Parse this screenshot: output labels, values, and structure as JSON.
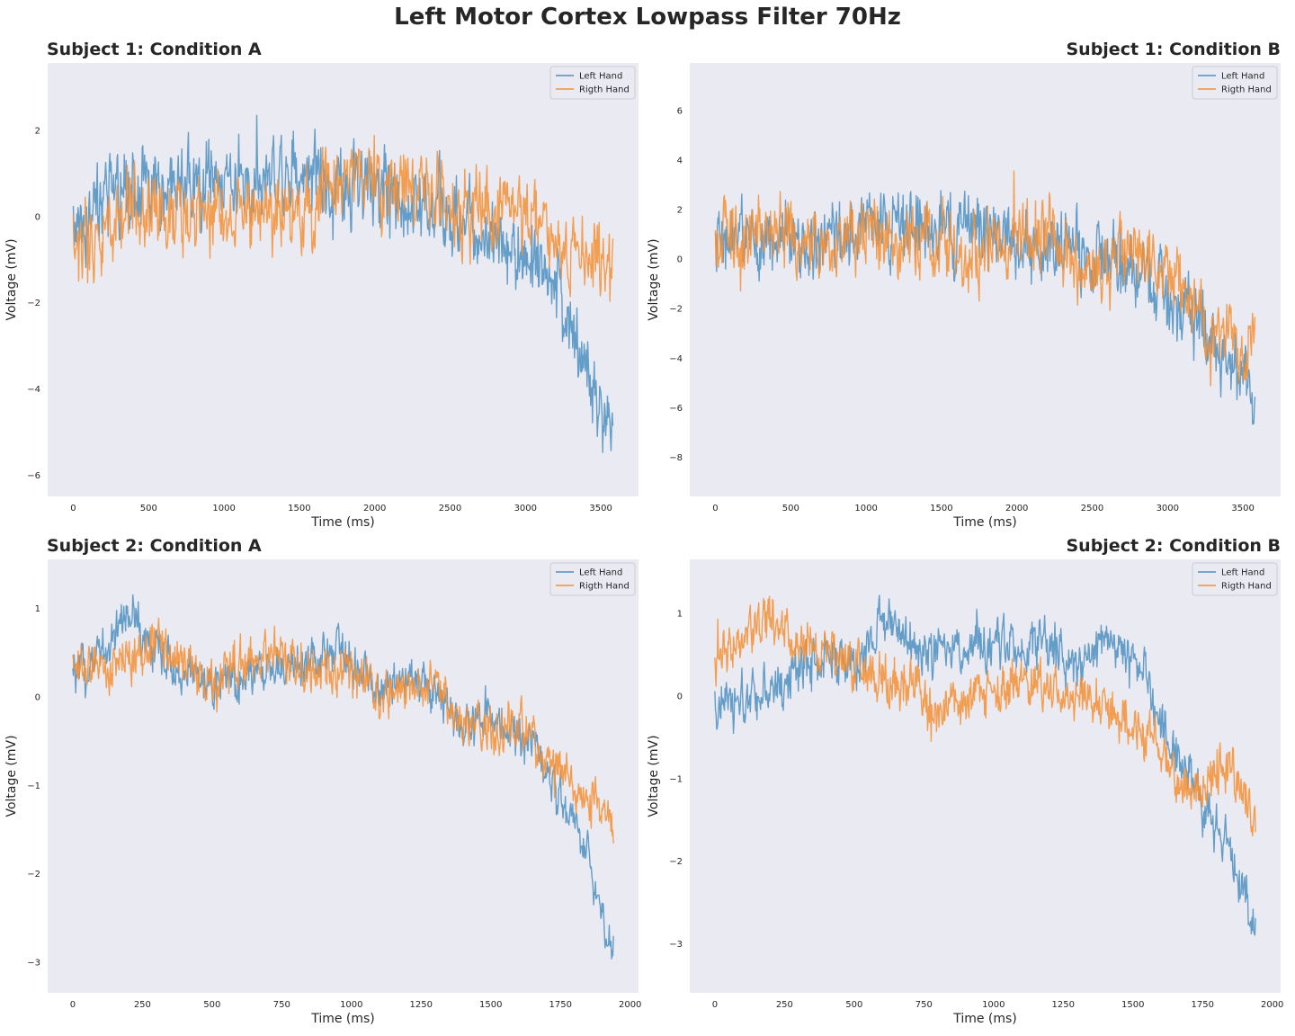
{
  "figure": {
    "suptitle": "Left Motor Cortex Lowpass Filter 70Hz"
  },
  "colors": {
    "left": "#4c8fc1",
    "right": "#f58f35",
    "bg": "#eaeaf2"
  },
  "chart_data": [
    {
      "type": "line",
      "title": "Subject 1: Condition A",
      "title_align": "left",
      "xlabel": "Time (ms)",
      "ylabel": "Voltage (mV)",
      "xlim": [
        -170,
        3750
      ],
      "ylim": [
        -6.5,
        3.55
      ],
      "xticks": [
        0,
        500,
        1000,
        1500,
        2000,
        2500,
        3000,
        3500
      ],
      "yticks": [
        -6,
        -4,
        -2,
        0,
        2
      ],
      "legend_position": "top-right",
      "grid": false,
      "series": [
        {
          "name": "Left Hand",
          "x": [
            0,
            200,
            400,
            600,
            800,
            1000,
            1200,
            1400,
            1600,
            1800,
            2000,
            2200,
            2400,
            2600,
            2800,
            3000,
            3200,
            3300,
            3400,
            3500,
            3580
          ],
          "y": [
            -0.2,
            0.4,
            0.7,
            0.5,
            0.7,
            0.9,
            0.9,
            1.1,
            1.1,
            0.6,
            0.7,
            0.5,
            0.2,
            -0.2,
            -0.6,
            -0.9,
            -1.6,
            -2.6,
            -3.5,
            -4.6,
            -5.2
          ],
          "noise": 0.95
        },
        {
          "name": "Rigth Hand",
          "x": [
            0,
            200,
            400,
            600,
            800,
            1000,
            1200,
            1400,
            1600,
            1800,
            2000,
            2200,
            2400,
            2600,
            2800,
            3000,
            3200,
            3400,
            3580
          ],
          "y": [
            -0.9,
            -0.2,
            0.1,
            -0.1,
            0.0,
            0.2,
            0.1,
            0.0,
            0.3,
            0.7,
            0.8,
            0.6,
            0.5,
            0.0,
            0.3,
            0.3,
            -0.6,
            -0.9,
            -1.8
          ],
          "noise": 0.95
        }
      ]
    },
    {
      "type": "line",
      "title": "Subject 1: Condition B",
      "title_align": "right",
      "xlabel": "Time (ms)",
      "ylabel": "Voltage (mV)",
      "xlim": [
        -170,
        3750
      ],
      "ylim": [
        -9.6,
        7.9
      ],
      "xticks": [
        0,
        500,
        1000,
        1500,
        2000,
        2500,
        3000,
        3500
      ],
      "yticks": [
        -8,
        -6,
        -4,
        -2,
        0,
        2,
        4,
        6
      ],
      "legend_position": "top-right",
      "grid": false,
      "series": [
        {
          "name": "Left Hand",
          "x": [
            0,
            100,
            200,
            400,
            600,
            800,
            1000,
            1200,
            1400,
            1600,
            1800,
            2000,
            2200,
            2400,
            2600,
            2800,
            3000,
            3200,
            3400,
            3580
          ],
          "y": [
            0.8,
            0.4,
            0.8,
            0.8,
            0.4,
            1.0,
            1.5,
            1.2,
            1.1,
            1.2,
            1.1,
            0.7,
            0.5,
            0.5,
            -0.2,
            -0.7,
            -1.3,
            -2.5,
            -4.0,
            -5.2
          ],
          "noise": 1.5
        },
        {
          "name": "Rigth Hand",
          "x": [
            0,
            200,
            400,
            600,
            800,
            1000,
            1200,
            1400,
            1600,
            1800,
            2000,
            2200,
            2400,
            2600,
            2800,
            3000,
            3200,
            3400,
            3580
          ],
          "y": [
            0.8,
            1.0,
            1.2,
            0.6,
            0.9,
            1.3,
            0.7,
            0.6,
            0.2,
            0.4,
            0.7,
            0.8,
            -0.4,
            -0.1,
            0.0,
            -0.6,
            -2.3,
            -3.5,
            -3.6
          ],
          "noise": 1.5
        }
      ]
    },
    {
      "type": "line",
      "title": "Subject 2: Condition A",
      "title_align": "left",
      "xlabel": "Time (ms)",
      "ylabel": "Voltage (mV)",
      "xlim": [
        -90,
        2030
      ],
      "ylim": [
        -3.35,
        1.55
      ],
      "xticks": [
        0,
        250,
        500,
        750,
        1000,
        1250,
        1500,
        1750,
        2000
      ],
      "yticks": [
        -3,
        -2,
        -1,
        0,
        1
      ],
      "legend_position": "top-right",
      "grid": false,
      "series": [
        {
          "name": "Left Hand",
          "x": [
            0,
            100,
            200,
            300,
            400,
            500,
            600,
            700,
            800,
            900,
            1000,
            1100,
            1200,
            1300,
            1400,
            1500,
            1600,
            1700,
            1800,
            1850,
            1900,
            1940
          ],
          "y": [
            0.2,
            0.5,
            0.9,
            0.5,
            0.3,
            0.1,
            0.2,
            0.3,
            0.3,
            0.5,
            0.4,
            0.1,
            0.2,
            0.0,
            -0.3,
            -0.2,
            -0.4,
            -0.8,
            -1.5,
            -1.8,
            -2.6,
            -2.8
          ],
          "noise": 0.28
        },
        {
          "name": "Rigth Hand",
          "x": [
            0,
            100,
            200,
            300,
            400,
            500,
            600,
            700,
            800,
            900,
            1000,
            1100,
            1200,
            1300,
            1400,
            1500,
            1600,
            1700,
            1800,
            1900,
            1940
          ],
          "y": [
            0.3,
            0.3,
            0.4,
            0.6,
            0.4,
            0.1,
            0.4,
            0.5,
            0.3,
            0.2,
            0.3,
            0.0,
            0.1,
            0.1,
            -0.3,
            -0.4,
            -0.3,
            -0.7,
            -1.0,
            -1.2,
            -1.5
          ],
          "noise": 0.28
        }
      ]
    },
    {
      "type": "line",
      "title": "Subject 2: Condition B",
      "title_align": "right",
      "xlabel": "Time (ms)",
      "ylabel": "Voltage (mV)",
      "xlim": [
        -90,
        2030
      ],
      "ylim": [
        -3.6,
        1.65
      ],
      "xticks": [
        0,
        250,
        500,
        750,
        1000,
        1250,
        1500,
        1750,
        2000
      ],
      "yticks": [
        -3,
        -2,
        -1,
        0,
        1
      ],
      "legend_position": "top-right",
      "grid": false,
      "series": [
        {
          "name": "Left Hand",
          "x": [
            0,
            100,
            200,
            300,
            400,
            500,
            600,
            700,
            800,
            900,
            1000,
            1100,
            1200,
            1300,
            1400,
            1500,
            1550,
            1600,
            1700,
            1800,
            1900,
            1940
          ],
          "y": [
            -0.2,
            -0.1,
            0.1,
            0.3,
            0.5,
            0.3,
            0.9,
            0.6,
            0.5,
            0.6,
            0.6,
            0.6,
            0.6,
            0.4,
            0.6,
            0.5,
            0.3,
            -0.4,
            -0.9,
            -1.6,
            -2.4,
            -2.9
          ],
          "noise": 0.32
        },
        {
          "name": "Rigth Hand",
          "x": [
            0,
            100,
            200,
            300,
            400,
            500,
            600,
            700,
            800,
            900,
            1000,
            1100,
            1200,
            1300,
            1400,
            1500,
            1600,
            1700,
            1800,
            1850,
            1900,
            1940
          ],
          "y": [
            0.4,
            0.7,
            0.9,
            0.6,
            0.5,
            0.4,
            0.2,
            0.1,
            -0.1,
            0.0,
            0.1,
            0.2,
            0.1,
            0.0,
            -0.1,
            -0.3,
            -0.6,
            -1.2,
            -1.0,
            -0.8,
            -1.3,
            -1.4
          ],
          "noise": 0.32
        }
      ]
    }
  ]
}
